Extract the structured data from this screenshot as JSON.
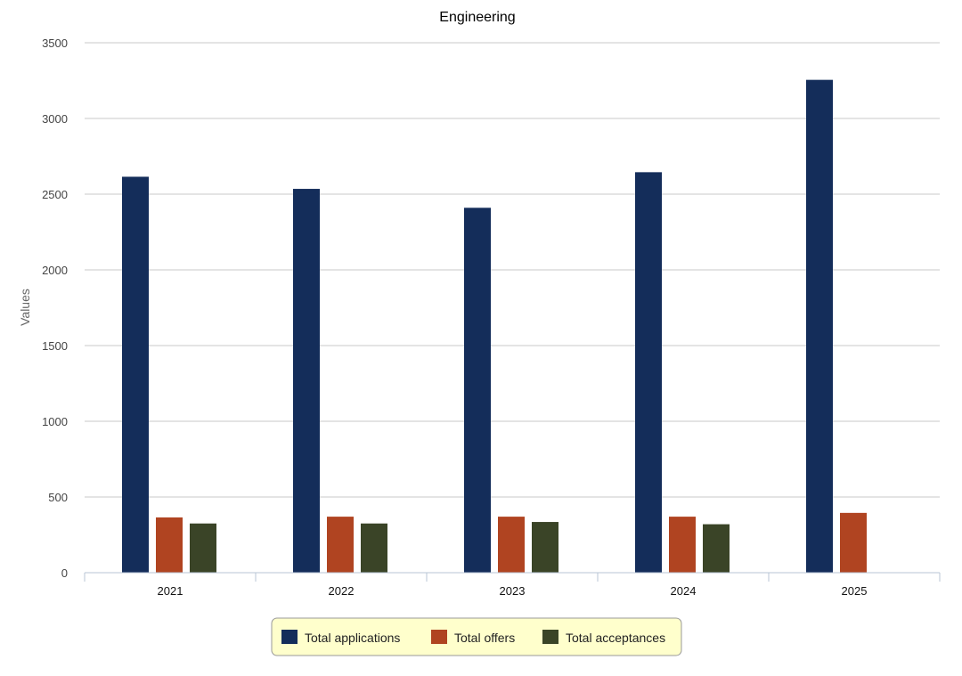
{
  "chart_data": {
    "type": "bar",
    "title": "Engineering",
    "xlabel": "",
    "ylabel": "Values",
    "categories": [
      "2021",
      "2022",
      "2023",
      "2024",
      "2025"
    ],
    "series": [
      {
        "name": "Total applications",
        "color": "#142d5a",
        "values": [
          2615,
          2535,
          2410,
          2645,
          3255
        ]
      },
      {
        "name": "Total offers",
        "color": "#b04421",
        "values": [
          365,
          370,
          370,
          370,
          395
        ]
      },
      {
        "name": "Total acceptances",
        "color": "#3a4427",
        "values": [
          325,
          325,
          335,
          320,
          null
        ]
      }
    ],
    "ylim": [
      0,
      3500
    ],
    "yticks": [
      0,
      500,
      1000,
      1500,
      2000,
      2500,
      3000,
      3500
    ],
    "grid": true,
    "legend_position": "bottom"
  },
  "colors": {
    "legend_background": "#ffffcc",
    "legend_border": "#999999"
  }
}
